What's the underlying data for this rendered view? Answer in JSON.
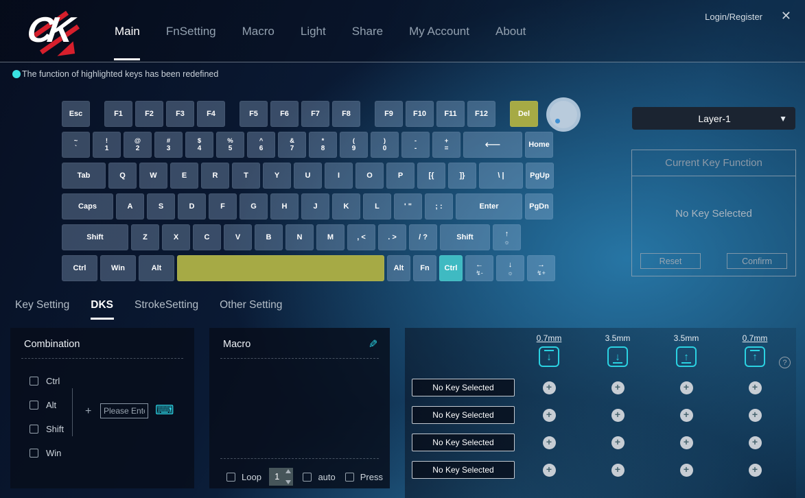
{
  "brand": "CK",
  "topbar": {
    "login": "Login/Register",
    "close": "✕",
    "nav": [
      {
        "label": "Main",
        "active": true
      },
      {
        "label": "FnSetting",
        "active": false
      },
      {
        "label": "Macro",
        "active": false
      },
      {
        "label": "Light",
        "active": false
      },
      {
        "label": "Share",
        "active": false
      },
      {
        "label": "My Account",
        "active": false
      },
      {
        "label": "About",
        "active": false
      }
    ]
  },
  "status": {
    "text": "The function of highlighted keys has been redefined"
  },
  "colors": {
    "accent_cyan": "#2bd2e2",
    "highlight_olive": "#a6aa45",
    "highlight_teal": "#3fbac2",
    "brand_red": "#d61f2c"
  },
  "keyboard": {
    "rows": [
      [
        {
          "l": "Esc"
        },
        {
          "sp": 13
        },
        {
          "l": "F1"
        },
        {
          "l": "F2"
        },
        {
          "l": "F3"
        },
        {
          "l": "F4"
        },
        {
          "sp": 13
        },
        {
          "l": "F5"
        },
        {
          "l": "F6"
        },
        {
          "l": "F7"
        },
        {
          "l": "F8"
        },
        {
          "sp": 13
        },
        {
          "l": "F9"
        },
        {
          "l": "F10"
        },
        {
          "l": "F11"
        },
        {
          "l": "F12"
        },
        {
          "sp": 13
        },
        {
          "l": "Del",
          "cls": "olive",
          "n": "del"
        },
        {
          "knob": true
        }
      ],
      [
        {
          "t": "~",
          "b": "`",
          "n": "backquote"
        },
        {
          "t": "!",
          "b": "1",
          "n": "1"
        },
        {
          "t": "@",
          "b": "2",
          "n": "2"
        },
        {
          "t": "#",
          "b": "3",
          "n": "3"
        },
        {
          "t": "$",
          "b": "4",
          "n": "4"
        },
        {
          "t": "%",
          "b": "5",
          "n": "5"
        },
        {
          "t": "^",
          "b": "6",
          "n": "6"
        },
        {
          "t": "&",
          "b": "7",
          "n": "7"
        },
        {
          "t": "*",
          "b": "8",
          "n": "8"
        },
        {
          "t": "(",
          "b": "9",
          "n": "9"
        },
        {
          "t": ")",
          "b": "0",
          "n": "0"
        },
        {
          "t": "-",
          "b": "-",
          "n": "minus"
        },
        {
          "t": "+",
          "b": "=",
          "n": "equals"
        },
        {
          "l": "⟵",
          "w": 2,
          "cls": "bksp",
          "n": "backspace"
        },
        {
          "l": "Home"
        }
      ],
      [
        {
          "l": "Tab",
          "w": 1.5
        },
        {
          "l": "Q"
        },
        {
          "l": "W"
        },
        {
          "l": "E"
        },
        {
          "l": "R"
        },
        {
          "l": "T"
        },
        {
          "l": "Y"
        },
        {
          "l": "U"
        },
        {
          "l": "I"
        },
        {
          "l": "O"
        },
        {
          "l": "P"
        },
        {
          "l": "[{",
          "n": "bracket-left"
        },
        {
          "l": "]}",
          "n": "bracket-right"
        },
        {
          "l": "\\ |",
          "w": 1.5,
          "n": "backslash"
        },
        {
          "l": "PgUp"
        }
      ],
      [
        {
          "l": "Caps",
          "w": 1.75
        },
        {
          "l": "A"
        },
        {
          "l": "S"
        },
        {
          "l": "D"
        },
        {
          "l": "F"
        },
        {
          "l": "G"
        },
        {
          "l": "H"
        },
        {
          "l": "J"
        },
        {
          "l": "K"
        },
        {
          "l": "L"
        },
        {
          "l": "' \"",
          "n": "quote"
        },
        {
          "l": "; :",
          "n": "semicolon"
        },
        {
          "l": "Enter",
          "w": 2.25
        },
        {
          "l": "PgDn"
        }
      ],
      [
        {
          "l": "Shift",
          "w": 2.25,
          "n": "shift-left"
        },
        {
          "l": "Z"
        },
        {
          "l": "X"
        },
        {
          "l": "C"
        },
        {
          "l": "V"
        },
        {
          "l": "B"
        },
        {
          "l": "N"
        },
        {
          "l": "M"
        },
        {
          "l": ", <",
          "n": "comma"
        },
        {
          "l": ". >",
          "n": "period"
        },
        {
          "l": "/ ?",
          "n": "slash"
        },
        {
          "l": "Shift",
          "w": 1.7,
          "n": "shift-right"
        },
        {
          "l": "↑",
          "sub": "☼",
          "n": "arrow-up-brightness"
        }
      ],
      [
        {
          "l": "Ctrl",
          "w": 1.25,
          "n": "ctrl-left"
        },
        {
          "l": "Win",
          "w": 1.25
        },
        {
          "l": "Alt",
          "w": 1.25,
          "n": "alt-left"
        },
        {
          "l": "",
          "w": 6.8,
          "cls": "olive",
          "n": "space"
        },
        {
          "l": "Alt",
          "w": 0.85,
          "n": "alt-right"
        },
        {
          "l": "Fn",
          "w": 0.85
        },
        {
          "l": "Ctrl",
          "w": 0.85,
          "cls": "teal",
          "n": "ctrl-right"
        },
        {
          "l": "←",
          "sub": "↯-",
          "n": "arrow-left-speed-minus"
        },
        {
          "l": "↓",
          "sub": "☼",
          "n": "arrow-down-brightness"
        },
        {
          "l": "→",
          "sub": "↯+",
          "n": "arrow-right-speed-plus"
        }
      ]
    ]
  },
  "layer": {
    "value": "Layer-1",
    "arrow": "▼"
  },
  "key_function": {
    "title": "Current Key Function",
    "empty": "No Key Selected",
    "reset": "Reset",
    "confirm": "Confirm"
  },
  "tabs": [
    {
      "label": "Key Setting",
      "active": false
    },
    {
      "label": "DKS",
      "active": true
    },
    {
      "label": "StrokeSetting",
      "active": false
    },
    {
      "label": "Other Setting",
      "active": false
    }
  ],
  "combination": {
    "title": "Combination",
    "modifiers": [
      "Ctrl",
      "Alt",
      "Shift",
      "Win"
    ],
    "plus": "+",
    "input_placeholder": "Please Enter",
    "keyboard_icon": "⌨"
  },
  "macro": {
    "title": "Macro",
    "edit_icon": "✎",
    "loop_label": "Loop",
    "loop_value": "1",
    "auto_label": "auto",
    "press_label": "Press"
  },
  "dks": {
    "columns": [
      {
        "mm": "0.7mm",
        "underline": true,
        "icon": "down-from-top"
      },
      {
        "mm": "3.5mm",
        "underline": false,
        "icon": "down-to-bottom"
      },
      {
        "mm": "3.5mm",
        "underline": false,
        "icon": "up-from-bottom"
      },
      {
        "mm": "0.7mm",
        "underline": true,
        "icon": "up-to-top"
      }
    ],
    "help": "?",
    "plus": "+",
    "rows": [
      "No Key Selected",
      "No Key Selected",
      "No Key Selected",
      "No Key Selected"
    ]
  }
}
